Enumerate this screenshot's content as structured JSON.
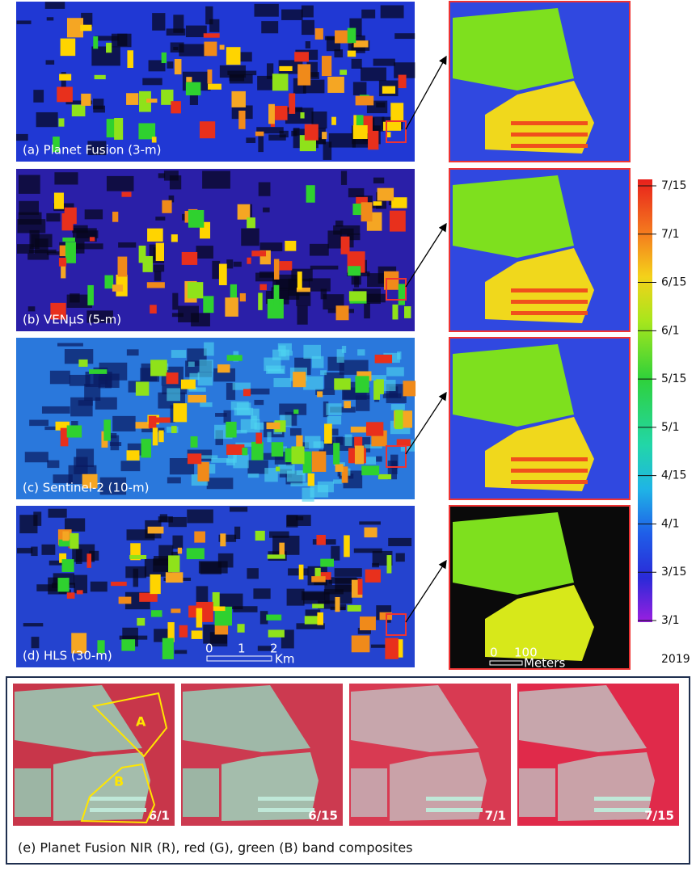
{
  "panels": [
    {
      "label": "(a) Planet Fusion (3-m)"
    },
    {
      "label": "(b) VENμS (5-m)"
    },
    {
      "label": "(c) Sentinel-2 (10-m)"
    },
    {
      "label": "(d) HLS (30-m)"
    }
  ],
  "scale_bar": {
    "ticks": [
      "0",
      "1",
      "2"
    ],
    "unit": "Km"
  },
  "inset_scale_bar": {
    "ticks": [
      "0",
      "100"
    ],
    "unit": "Meters"
  },
  "colorbar": {
    "ticks": [
      "7/15",
      "7/1",
      "6/15",
      "6/1",
      "5/15",
      "5/1",
      "4/15",
      "4/1",
      "3/15",
      "3/1"
    ],
    "year": "2019"
  },
  "composites": {
    "frames": [
      "6/1",
      "6/15",
      "7/1",
      "7/15"
    ],
    "field_labels": [
      "A",
      "B"
    ],
    "caption": "(e) Planet Fusion NIR (R), red (G), green (B) band composites"
  }
}
